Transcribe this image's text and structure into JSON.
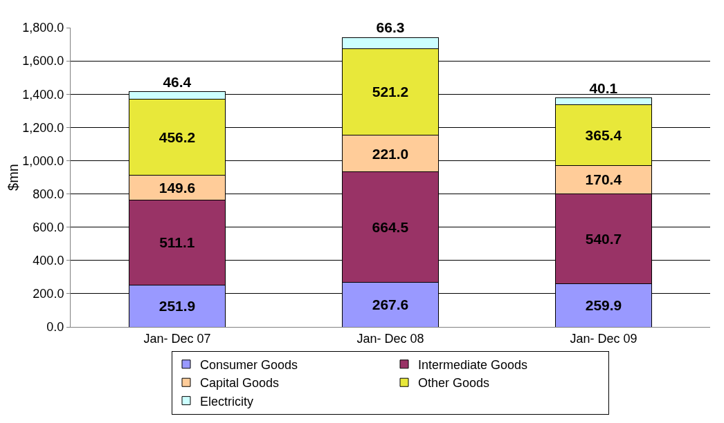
{
  "chart_data": {
    "type": "bar",
    "stacked": true,
    "ylabel": "$mn",
    "categories": [
      "Jan- Dec 07",
      "Jan- Dec 08",
      "Jan- Dec 09"
    ],
    "series": [
      {
        "name": "Consumer Goods",
        "color": "#9999ff",
        "values": [
          251.9,
          267.6,
          259.9
        ],
        "value_labels": [
          "251.9",
          "267.6",
          "259.9"
        ]
      },
      {
        "name": "Intermediate Goods",
        "color": "#993366",
        "values": [
          511.1,
          664.5,
          540.7
        ],
        "value_labels": [
          "511.1",
          "664.5",
          "540.7"
        ]
      },
      {
        "name": "Capital Goods",
        "color": "#ffcc99",
        "values": [
          149.6,
          221.0,
          170.4
        ],
        "value_labels": [
          "149.6",
          "221.0",
          "170.4"
        ]
      },
      {
        "name": "Other Goods",
        "color": "#e8e83a",
        "values": [
          456.2,
          521.2,
          365.4
        ],
        "value_labels": [
          "456.2",
          "521.2",
          "365.4"
        ]
      },
      {
        "name": "Electricity",
        "color": "#ccffff",
        "values": [
          46.4,
          66.3,
          40.1
        ],
        "value_labels": [
          "46.4",
          "66.3",
          "40.1"
        ]
      }
    ],
    "ylim": [
      0,
      1800
    ],
    "yticks": [
      {
        "value": 0,
        "label": "0.0"
      },
      {
        "value": 200,
        "label": "200.0"
      },
      {
        "value": 400,
        "label": "400.0"
      },
      {
        "value": 600,
        "label": "600.0"
      },
      {
        "value": 800,
        "label": "800.0"
      },
      {
        "value": 1000,
        "label": "1,000.0"
      },
      {
        "value": 1200,
        "label": "1,200.0"
      },
      {
        "value": 1400,
        "label": "1,400.0"
      },
      {
        "value": 1600,
        "label": "1,600.0"
      },
      {
        "value": 1800,
        "label": "1,800.0"
      }
    ],
    "grid": "y",
    "legend": "bottom"
  }
}
